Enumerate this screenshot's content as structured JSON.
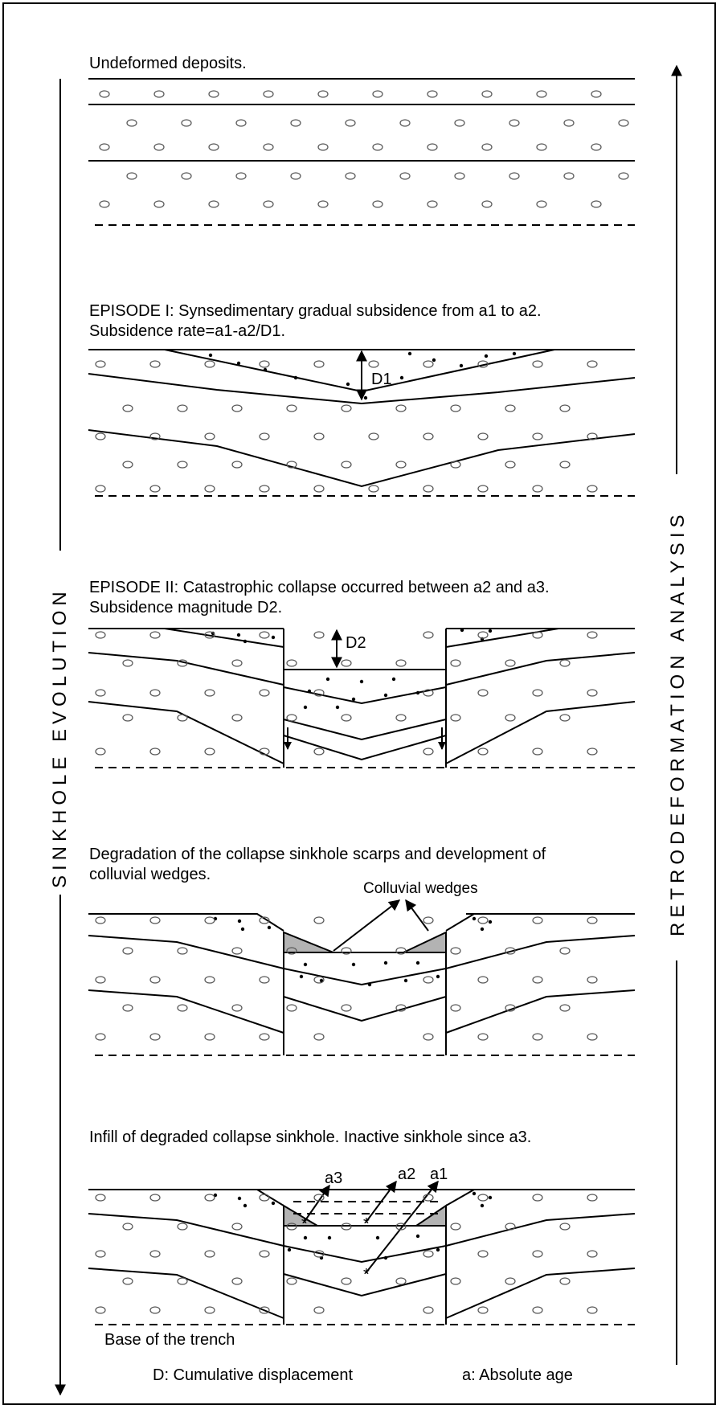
{
  "stages": [
    {
      "id": "undeformed",
      "caption": "Undeformed deposits."
    },
    {
      "id": "episode1",
      "caption": "EPISODE I: Synsedimentary gradual subsidence from a1 to a2.",
      "caption2": "Subsidence rate=a1-a2/D1.",
      "marker": "D1"
    },
    {
      "id": "episode2",
      "caption": "EPISODE II: Catastrophic collapse occurred between a2 and a3.",
      "caption2": "Subsidence magnitude D2.",
      "marker": "D2"
    },
    {
      "id": "degradation",
      "caption": "Degradation of the collapse sinkhole scarps and development of",
      "caption2": "colluvial wedges.",
      "annotation": "Colluvial wedges"
    },
    {
      "id": "infill",
      "caption": "Infill of degraded collapse sinkhole. Inactive sinkhole since a3.",
      "ages": [
        "a3",
        "a2",
        "a1"
      ]
    }
  ],
  "left_axis_label": "SINKHOLE EVOLUTION",
  "right_axis_label": "RETRODEFORMATION ANALYSIS",
  "bottom": {
    "base_label": "Base of the trench",
    "legend_d": "D: Cumulative displacement",
    "legend_a": "a: Absolute age"
  }
}
